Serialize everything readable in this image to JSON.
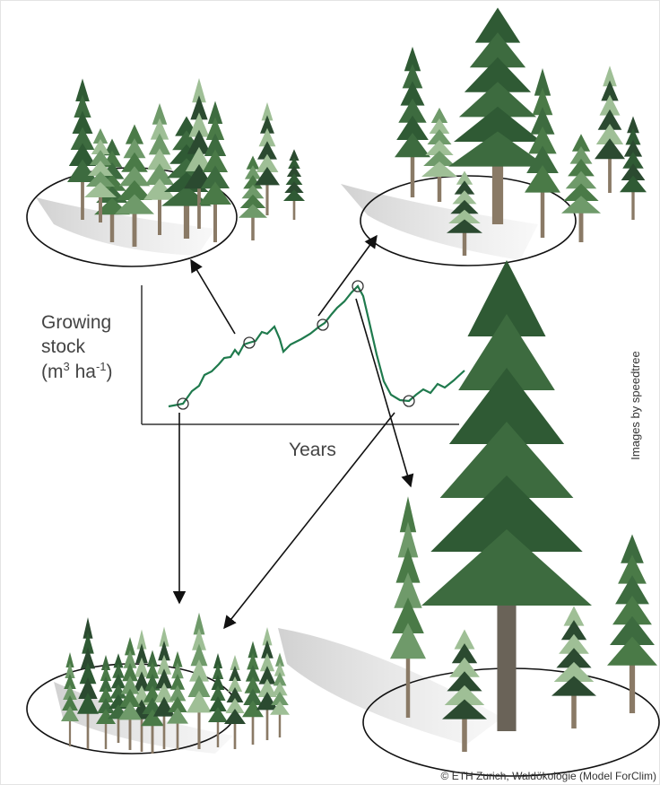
{
  "diagram": {
    "y_axis_label": {
      "lines": [
        "Growing",
        "stock"
      ],
      "unit": [
        "(m",
        "3",
        " ha",
        "-1",
        ")"
      ]
    },
    "x_axis_label": "Years",
    "side_credit": "Images by speedtree",
    "footer_credit": "© ETH Zurich, Waldökologie (Model ForClim)"
  }
}
